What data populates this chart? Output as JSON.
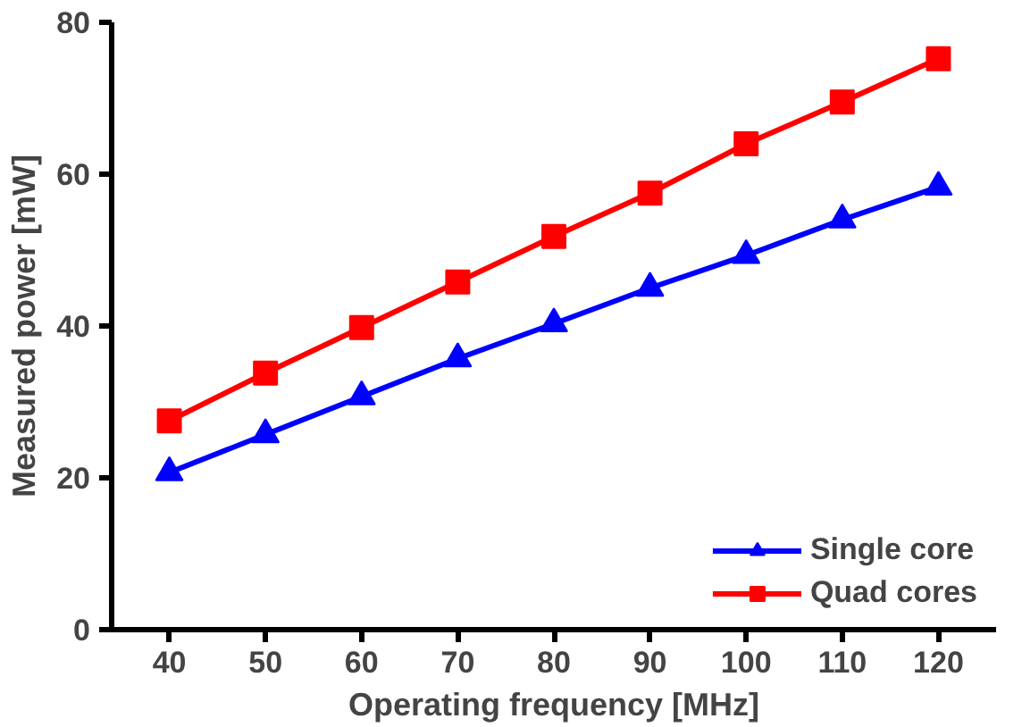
{
  "chart_data": {
    "type": "line",
    "xlabel": "Operating frequency [MHz]",
    "ylabel": "Measured power [mW]",
    "x": [
      40,
      50,
      60,
      70,
      80,
      90,
      100,
      110,
      120
    ],
    "series": [
      {
        "name": "Single core",
        "color": "#0000ff",
        "marker": "triangle",
        "values": [
          20.7,
          25.7,
          30.7,
          35.7,
          40.3,
          45,
          49.3,
          54,
          58.3
        ]
      },
      {
        "name": "Quad cores",
        "color": "#ff0000",
        "marker": "square",
        "values": [
          27.5,
          33.8,
          39.8,
          45.8,
          51.8,
          57.5,
          64,
          69.5,
          75.2
        ]
      }
    ],
    "xlim": [
      34,
      126
    ],
    "ylim": [
      0,
      80
    ],
    "xticks": [
      40,
      50,
      60,
      70,
      80,
      90,
      100,
      110,
      120
    ],
    "yticks": [
      0,
      20,
      40,
      60,
      80
    ],
    "grid": false,
    "legend": "bottom right",
    "line_style": "solid"
  }
}
